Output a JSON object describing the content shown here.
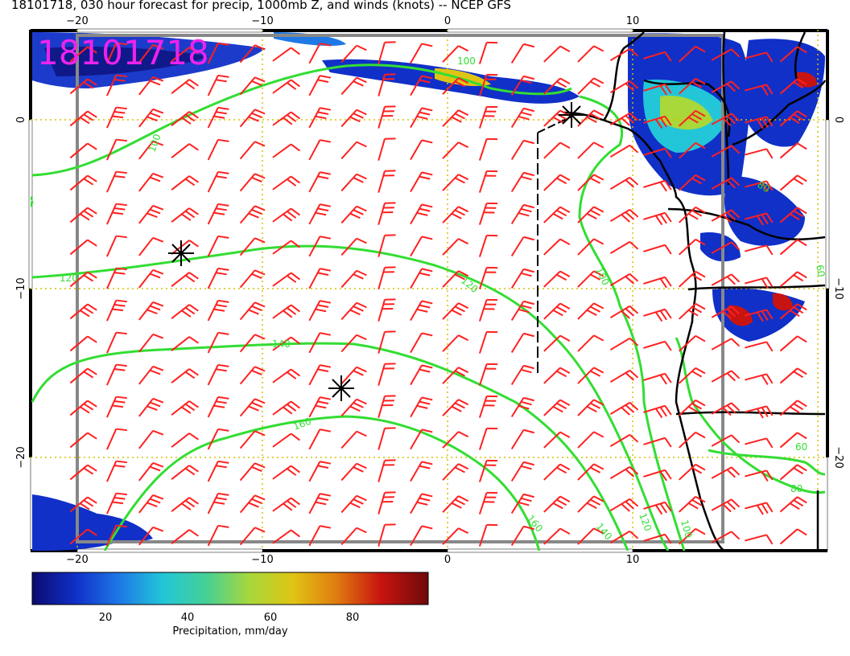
{
  "title": "18101718, 030 hour forecast for precip, 1000mb Z, and winds (knots) -- NCEP GFS",
  "stamp": "18101718",
  "axes": {
    "lon_ticks": [
      {
        "label": "−20",
        "value": -20
      },
      {
        "label": "−10",
        "value": -10
      },
      {
        "label": "0",
        "value": 0
      },
      {
        "label": "10",
        "value": 10
      }
    ],
    "lat_ticks": [
      {
        "label": "0",
        "value": 0
      },
      {
        "label": "−10",
        "value": -10
      },
      {
        "label": "−20",
        "value": -20
      }
    ]
  },
  "contour_labels": [
    "100",
    "100",
    "120",
    "120",
    "140",
    "160",
    "100",
    "100",
    "120",
    "140",
    "160",
    "60",
    "80",
    "60",
    "80"
  ],
  "colorbar": {
    "ticks": [
      "20",
      "40",
      "60",
      "80"
    ],
    "label": "Precipitation, mm/day",
    "colors": [
      "#0b0b6e",
      "#1030c8",
      "#1e78e6",
      "#22c6d8",
      "#46d096",
      "#a8d83a",
      "#e0c414",
      "#e07a10",
      "#c81410",
      "#6e0a0a"
    ]
  },
  "colors": {
    "contour": "#33dd33",
    "wind": "#ff2020",
    "gridline": "#d8c000",
    "coast": "#000000",
    "stamp": "#ee22ee"
  },
  "pressure_centers": [
    "high-center",
    "high-center",
    "high-center"
  ]
}
